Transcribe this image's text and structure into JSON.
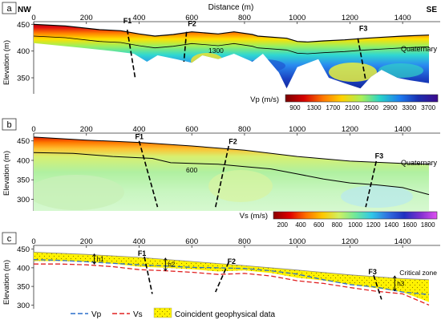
{
  "figure": {
    "dir_left": "NW",
    "dir_right": "SE",
    "distance_label": "Distance (m)",
    "elevation_label": "Elevation (m)",
    "x_ticks": [
      "0",
      "200",
      "400",
      "600",
      "800",
      "1000",
      "1200",
      "1400"
    ]
  },
  "chart_data": [
    {
      "panel": "a",
      "type": "heatmap",
      "xlabel": "Distance (m)",
      "ylabel": "Elevation (m)",
      "xlim": [
        0,
        1500
      ],
      "ylim": [
        320,
        455
      ],
      "y_ticks": [
        "450",
        "400",
        "350"
      ],
      "contour_label": "1300",
      "faults": [
        "F1",
        "F2",
        "F3"
      ],
      "layer_label": "Quaternary",
      "colorbar_title": "Vp (m/s)",
      "colorbar_ticks": [
        "900",
        "1300",
        "1700",
        "2100",
        "2500",
        "2900",
        "3300",
        "3700"
      ],
      "colorbar_colors": [
        "#7a0000",
        "#d40000",
        "#ff7a00",
        "#ffd200",
        "#a8f05a",
        "#29d4c8",
        "#1d7cf0",
        "#1a2fb0",
        "#3d0a8c"
      ],
      "surface": [
        [
          0,
          450
        ],
        [
          120,
          447
        ],
        [
          250,
          440
        ],
        [
          330,
          438
        ],
        [
          400,
          432
        ],
        [
          460,
          428
        ],
        [
          530,
          431
        ],
        [
          600,
          436
        ],
        [
          700,
          432
        ],
        [
          760,
          436
        ],
        [
          830,
          431
        ],
        [
          850,
          428
        ],
        [
          960,
          424
        ],
        [
          1000,
          418
        ],
        [
          1040,
          417
        ],
        [
          1100,
          419
        ],
        [
          1180,
          421
        ],
        [
          1260,
          424
        ],
        [
          1330,
          426
        ],
        [
          1400,
          428
        ],
        [
          1500,
          430
        ]
      ]
    },
    {
      "panel": "b",
      "type": "heatmap",
      "xlabel": "",
      "ylabel": "Elevation (m)",
      "xlim": [
        0,
        1500
      ],
      "ylim": [
        270,
        470
      ],
      "y_ticks": [
        "450",
        "400",
        "350",
        "300"
      ],
      "contour_label": "600",
      "faults": [
        "F1",
        "F2",
        "F3"
      ],
      "layer_label": "Quaternary",
      "colorbar_title": "Vs (m/s)",
      "colorbar_ticks": [
        "200",
        "400",
        "600",
        "800",
        "1000",
        "1200",
        "1400",
        "1600",
        "1800"
      ],
      "colorbar_colors": [
        "#8a0000",
        "#e00000",
        "#ff7000",
        "#ffc800",
        "#d0f060",
        "#6fe89a",
        "#30c8e8",
        "#3070e0",
        "#2030c0",
        "#8030d0",
        "#e050f0"
      ],
      "surface": [
        [
          0,
          460
        ],
        [
          200,
          452
        ],
        [
          400,
          446
        ],
        [
          600,
          437
        ],
        [
          800,
          426
        ],
        [
          1000,
          410
        ],
        [
          1200,
          398
        ],
        [
          1400,
          392
        ],
        [
          1500,
          390
        ]
      ]
    },
    {
      "panel": "c",
      "type": "line",
      "xlabel": "",
      "ylabel": "Elevation (m)",
      "xlim": [
        0,
        1500
      ],
      "ylim": [
        290,
        460
      ],
      "y_ticks": [
        "450",
        "400",
        "350",
        "300"
      ],
      "series": [
        {
          "name": "Vp",
          "x": [
            0,
            100,
            200,
            300,
            400,
            500,
            600,
            700,
            800,
            900,
            1000,
            1100,
            1200,
            1300,
            1400,
            1500
          ],
          "y": [
            422,
            420,
            416,
            412,
            408,
            405,
            401,
            400,
            398,
            392,
            383,
            368,
            355,
            348,
            335,
            328
          ]
        },
        {
          "name": "Vs",
          "x": [
            0,
            100,
            200,
            300,
            400,
            500,
            600,
            700,
            800,
            900,
            1000,
            1100,
            1200,
            1300,
            1400,
            1500
          ],
          "y": [
            410,
            410,
            408,
            403,
            395,
            392,
            388,
            382,
            385,
            378,
            365,
            358,
            347,
            337,
            330,
            300
          ]
        }
      ],
      "surface": [
        [
          0,
          442
        ],
        [
          200,
          436
        ],
        [
          400,
          428
        ],
        [
          600,
          417
        ],
        [
          800,
          406
        ],
        [
          1000,
          394
        ],
        [
          1200,
          381
        ],
        [
          1400,
          371
        ],
        [
          1500,
          368
        ]
      ],
      "band_label": "Coincident geophysical data",
      "zone_label": "Critical zone",
      "h_labels": [
        "h1",
        "h2",
        "h3"
      ],
      "faults": [
        "F1",
        "F2",
        "F3"
      ]
    }
  ]
}
